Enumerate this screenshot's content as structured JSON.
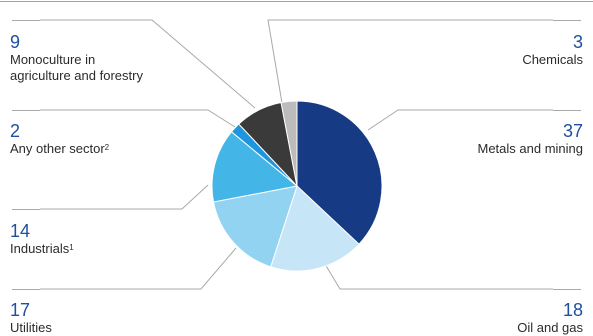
{
  "chart_data": {
    "type": "pie",
    "title": "",
    "slices": [
      {
        "name": "Metals and mining",
        "value": 37,
        "color": "#173a85"
      },
      {
        "name": "Oil and gas",
        "value": 18,
        "color": "#c6e6f8"
      },
      {
        "name": "Utilities",
        "value": 17,
        "color": "#92d3f2"
      },
      {
        "name": "Industrials",
        "footnote": "1",
        "value": 14,
        "color": "#43b5e6"
      },
      {
        "name": "Any other sector",
        "footnote": "2",
        "value": 2,
        "color": "#1e96df"
      },
      {
        "name": "Monoculture in agriculture and forestry",
        "value": 9,
        "color": "#3a3a3a"
      },
      {
        "name": "Chemicals",
        "value": 3,
        "color": "#bcbcbc"
      }
    ]
  },
  "labels": {
    "monoculture_value": "9",
    "monoculture_line1": "Monoculture in",
    "monoculture_line2": "agriculture and forestry",
    "other_value": "2",
    "other_text": "Any other sector",
    "other_sup": "2",
    "industrials_value": "14",
    "industrials_text": "Industrials",
    "industrials_sup": "1",
    "utilities_value": "17",
    "utilities_text": "Utilities",
    "chemicals_value": "3",
    "chemicals_text": "Chemicals",
    "metals_value": "37",
    "metals_text": "Metals and mining",
    "oil_value": "18",
    "oil_text": "Oil and gas"
  }
}
